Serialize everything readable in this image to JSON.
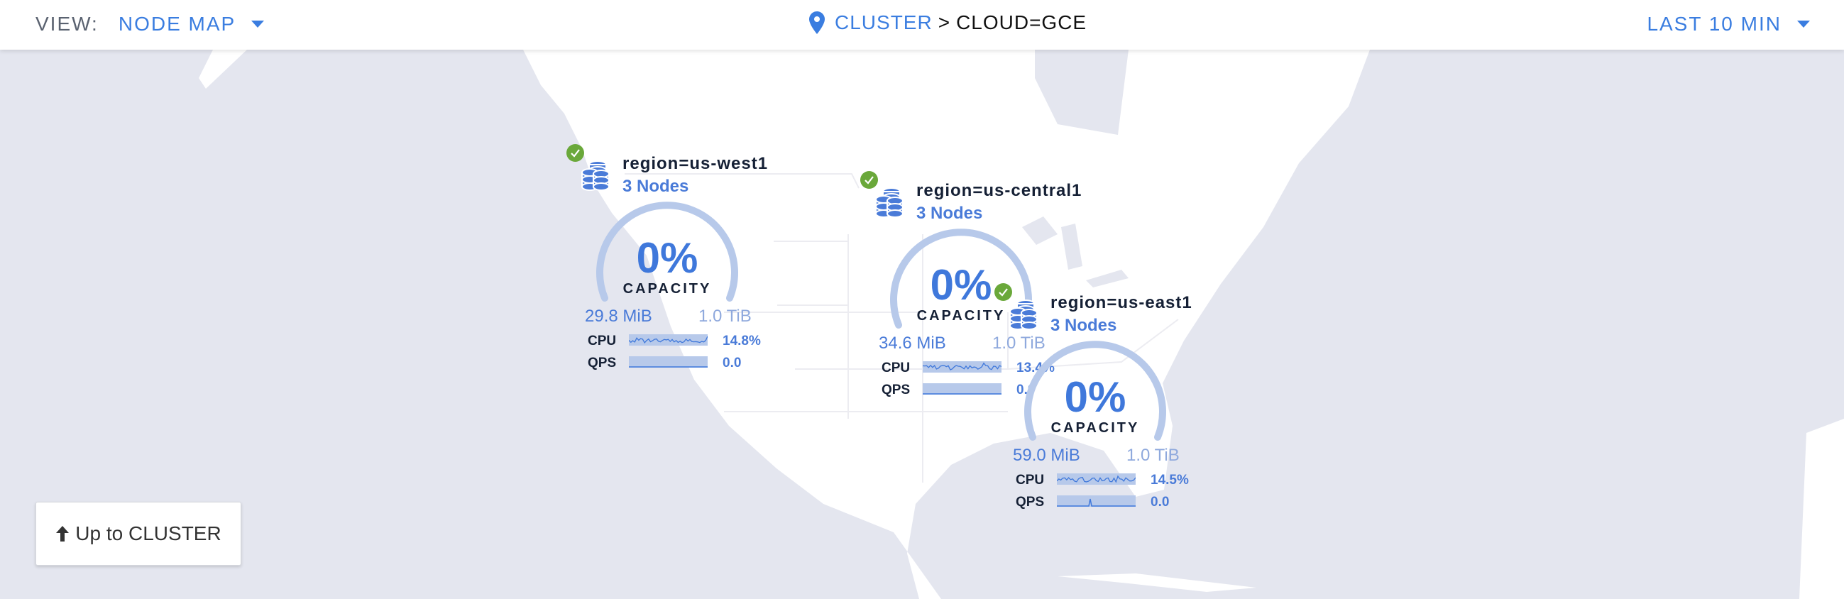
{
  "header": {
    "view_label": "VIEW:",
    "view_value": "NODE MAP",
    "breadcrumb": {
      "link": "CLUSTER",
      "separator": ">",
      "current": "CLOUD=GCE"
    },
    "time_range": "LAST 10 MIN"
  },
  "colors": {
    "accent": "#3a7de0",
    "healthy": "#6aa83a",
    "gauge_track": "#b7c9ea",
    "ocean": "#e4e6ef",
    "land": "#ffffff"
  },
  "regions": [
    {
      "name": "region=us-west1",
      "nodes": "3 Nodes",
      "status": "healthy",
      "capacity_pct": "0%",
      "capacity_label": "CAPACITY",
      "used": "29.8 MiB",
      "total": "1.0 TiB",
      "cpu_label": "CPU",
      "cpu": "14.8%",
      "qps_label": "QPS",
      "qps": "0.0"
    },
    {
      "name": "region=us-central1",
      "nodes": "3 Nodes",
      "status": "healthy",
      "capacity_pct": "0%",
      "capacity_label": "CAPACITY",
      "used": "34.6 MiB",
      "total": "1.0 TiB",
      "cpu_label": "CPU",
      "cpu": "13.4%",
      "qps_label": "QPS",
      "qps": "0.0"
    },
    {
      "name": "region=us-east1",
      "nodes": "3 Nodes",
      "status": "healthy",
      "capacity_pct": "0%",
      "capacity_label": "CAPACITY",
      "used": "59.0 MiB",
      "total": "1.0 TiB",
      "cpu_label": "CPU",
      "cpu": "14.5%",
      "qps_label": "QPS",
      "qps": "0.0"
    }
  ],
  "up_button": {
    "label": "Up to CLUSTER",
    "icon": "arrow-up-icon"
  }
}
